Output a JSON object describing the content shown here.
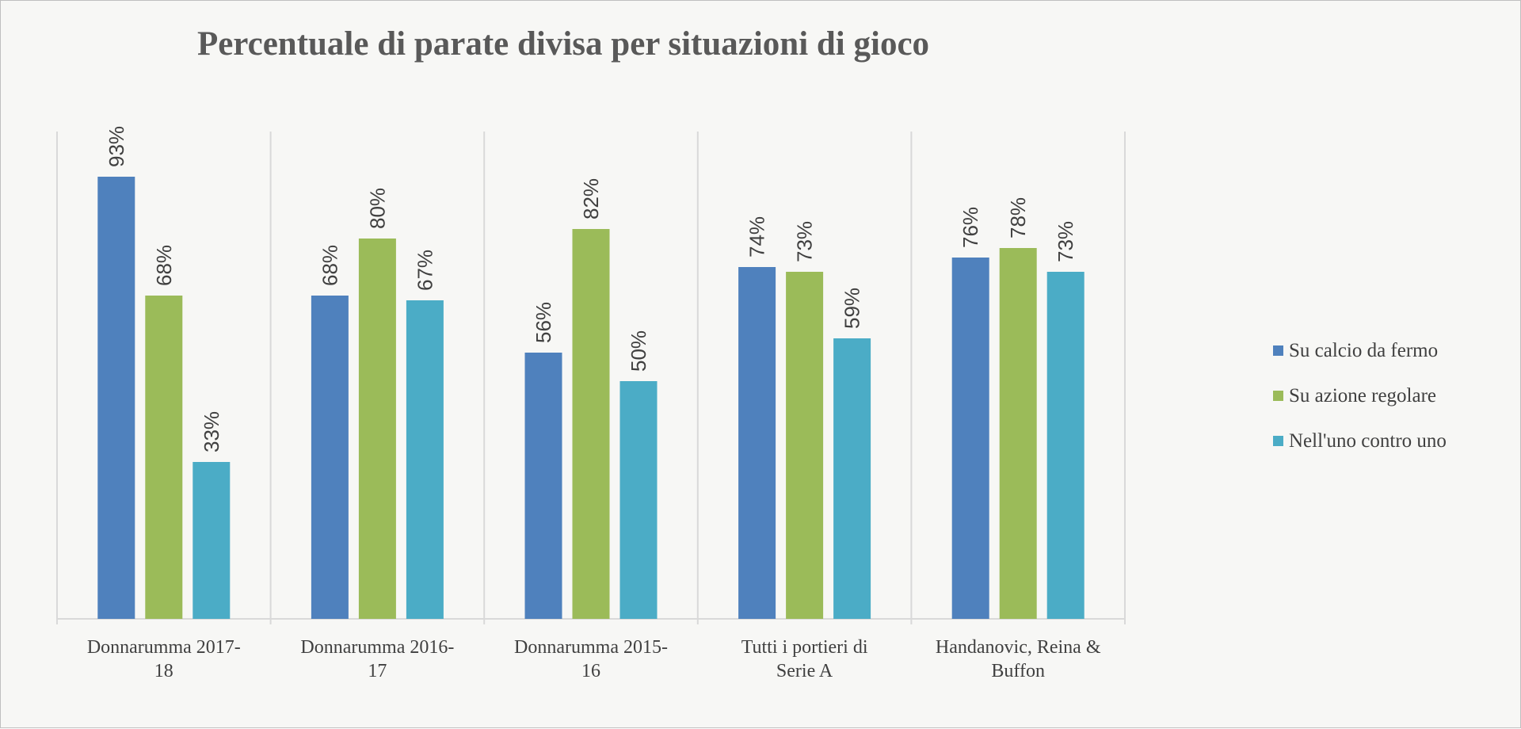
{
  "chart_data": {
    "type": "bar",
    "title": "Percentuale di parate divisa per situazioni di gioco",
    "categories": [
      [
        "Donnarumma 2017-",
        "18"
      ],
      [
        "Donnarumma 2016-",
        "17"
      ],
      [
        "Donnarumma 2015-",
        "16"
      ],
      [
        "Tutti i portieri di",
        "Serie A"
      ],
      [
        "Handanovic, Reina &",
        "Buffon"
      ]
    ],
    "series": [
      {
        "name": "Su calcio da fermo",
        "color": "#4f81bd",
        "values": [
          93,
          68,
          56,
          74,
          76
        ]
      },
      {
        "name": "Su azione regolare",
        "color": "#9bbb59",
        "values": [
          68,
          80,
          82,
          73,
          78
        ]
      },
      {
        "name": "Nell'uno contro uno",
        "color": "#4bacc6",
        "values": [
          33,
          67,
          50,
          59,
          73
        ]
      }
    ],
    "value_suffix": "%",
    "ylim": [
      0,
      100
    ],
    "xlabel": "",
    "ylabel": "",
    "grid": "vertical category separators",
    "legend_position": "right"
  }
}
